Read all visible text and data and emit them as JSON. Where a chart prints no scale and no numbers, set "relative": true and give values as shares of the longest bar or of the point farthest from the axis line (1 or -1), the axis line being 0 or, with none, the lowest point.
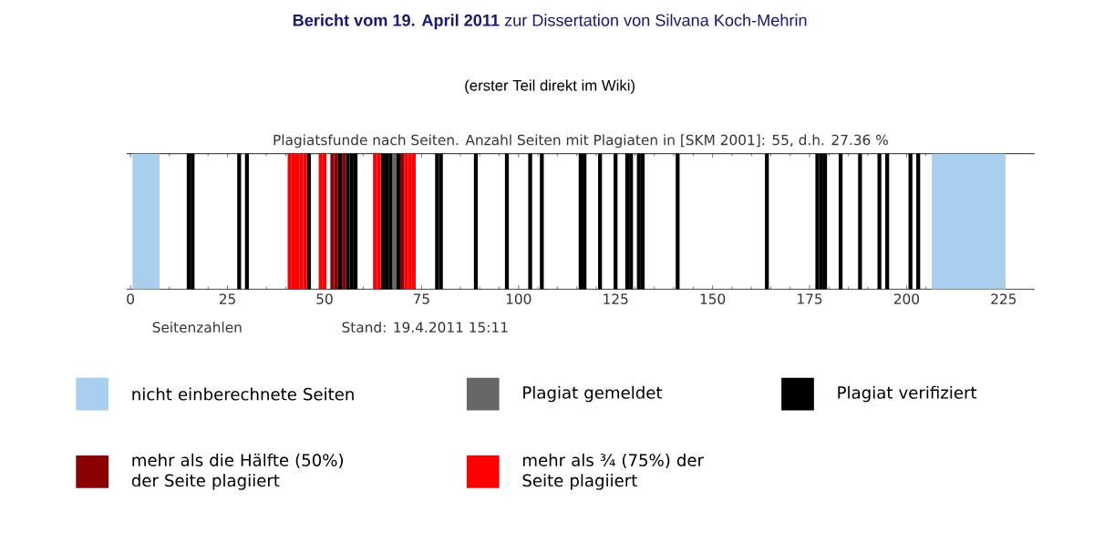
{
  "chart_data": {
    "type": "bar",
    "title": "**Bericht vom 19. April 2011** zur Dissertation von Silvana Koch-Mehrin",
    "subtitle": "(erster Teil direkt im Wiki)",
    "xlabel": "Seitenzahlen",
    "annotations": [
      "Plagiatsfunde nach Seiten. Anzahl Seiten mit Plagiaten in [SKM 2001]: 55, d.h. 27.36 %",
      "Stand: 19.4.2011 15:11"
    ],
    "relative": true,
    "xlim": [
      -1,
      233
    ],
    "xticks": [
      0,
      25,
      50,
      75,
      100,
      125,
      150,
      175,
      200,
      225
    ],
    "legend": "bottom",
    "bands": [
      {
        "axis": "x",
        "from": 0.5,
        "to": 7.5,
        "color": "#a8cfee",
        "label": "nicht einberechnete Seiten"
      },
      {
        "axis": "x",
        "from": 206.5,
        "to": 225.5,
        "color": "#a8cfee"
      }
    ],
    "series": [
      {
        "name": "Plagiat gemeldet",
        "color": "#666666",
        "x": [
          68
        ],
        "values": [
          1
        ]
      },
      {
        "name": "Plagiat verifiziert",
        "color": "#000000",
        "x": [
          15,
          16,
          28,
          30,
          46,
          54,
          56,
          57,
          58,
          65,
          66,
          67,
          69,
          79,
          80,
          89,
          97,
          103,
          106,
          116,
          117,
          121,
          125,
          128,
          129,
          131,
          132,
          141,
          164,
          177,
          178,
          179,
          183,
          188,
          193,
          195,
          201,
          203
        ],
        "values": [
          1,
          1,
          1,
          1,
          1,
          1,
          1,
          1,
          1,
          1,
          1,
          1,
          1,
          1,
          1,
          1,
          1,
          1,
          1,
          1,
          1,
          1,
          1,
          1,
          1,
          1,
          1,
          1,
          1,
          1,
          1,
          1,
          1,
          1,
          1,
          1,
          1,
          1
        ]
      },
      {
        "name": "mehr als die Hälfte (50%) der Seite plagiiert",
        "color": "#8b0000",
        "x": [
          52,
          53,
          55,
          70
        ],
        "values": [
          1,
          1,
          1,
          1
        ]
      },
      {
        "name": "mehr als ¾ (75%) der Seite plagiiert",
        "color": "#ff0000",
        "x": [
          41,
          42,
          43,
          44,
          45,
          49,
          50,
          63,
          64,
          71,
          72,
          73
        ],
        "values": [
          1,
          1,
          1,
          1,
          1,
          1,
          1,
          1,
          1,
          1,
          1,
          1
        ]
      }
    ]
  }
}
